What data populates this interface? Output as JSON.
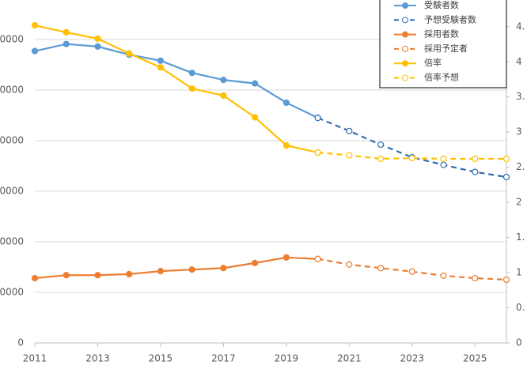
{
  "chart_data": {
    "type": "line",
    "x": [
      2011,
      2012,
      2013,
      2014,
      2015,
      2016,
      2017,
      2018,
      2019,
      2020,
      2021,
      2022,
      2023,
      2024,
      2025,
      2026
    ],
    "xlim": [
      2011,
      2026
    ],
    "xticks": [
      2011,
      2013,
      2015,
      2017,
      2019,
      2021,
      2023,
      2025
    ],
    "ylim": [
      0,
      678000
    ],
    "yticks": [
      0,
      {
        "value": 100000,
        "label": "00000"
      },
      {
        "value": 200000,
        "label": "00000"
      },
      {
        "value": 300000,
        "label": "00000"
      },
      {
        "value": 400000,
        "label": "00000"
      },
      {
        "value": 500000,
        "label": "00000"
      },
      {
        "value": 600000,
        "label": "00000"
      }
    ],
    "y2lim": [
      0,
      4.88
    ],
    "y2ticks": [
      0,
      {
        "value": 0.5,
        "label": "0."
      },
      1,
      {
        "value": 1.5,
        "label": "1."
      },
      2,
      {
        "value": 2.5,
        "label": "2."
      },
      3,
      {
        "value": 3.5,
        "label": "3."
      },
      4,
      {
        "value": 4.5,
        "label": "4."
      }
    ],
    "series": [
      {
        "name": "受験者数",
        "color": "#5b9bd5",
        "dashed": false,
        "values": [
          577000,
          591000,
          586000,
          570000,
          558000,
          534000,
          520000,
          513000,
          475000,
          445000,
          null,
          null,
          null,
          null,
          null,
          null
        ]
      },
      {
        "name": "予想受験者数",
        "color": "#2e6db4",
        "dashed": true,
        "values": [
          null,
          null,
          null,
          null,
          null,
          null,
          null,
          null,
          null,
          445000,
          419000,
          392000,
          367000,
          352000,
          338000,
          328000
        ]
      },
      {
        "name": "採用者数",
        "color": "#ed7d31",
        "dashed": false,
        "values": [
          128000,
          134000,
          134000,
          136000,
          142000,
          145000,
          148000,
          158000,
          169000,
          166000,
          null,
          null,
          null,
          null,
          null,
          null
        ]
      },
      {
        "name": "採用予定者",
        "color": "#ed7d31",
        "dashed": true,
        "values": [
          null,
          null,
          null,
          null,
          null,
          null,
          null,
          null,
          null,
          166000,
          155000,
          148000,
          141000,
          133000,
          128000,
          125000
        ]
      },
      {
        "name": "倍率",
        "color": "#ffc000",
        "dashed": false,
        "axis": "y2",
        "values": [
          4.52,
          4.42,
          4.33,
          4.12,
          3.92,
          3.62,
          3.52,
          3.21,
          2.81,
          2.71,
          null,
          null,
          null,
          null,
          null,
          null
        ]
      },
      {
        "name": "倍率予想",
        "color": "#ffc000",
        "dashed": true,
        "axis": "y2",
        "values": [
          null,
          null,
          null,
          null,
          null,
          null,
          null,
          null,
          null,
          2.71,
          2.67,
          2.62,
          2.63,
          2.62,
          2.62,
          2.62
        ]
      }
    ]
  }
}
